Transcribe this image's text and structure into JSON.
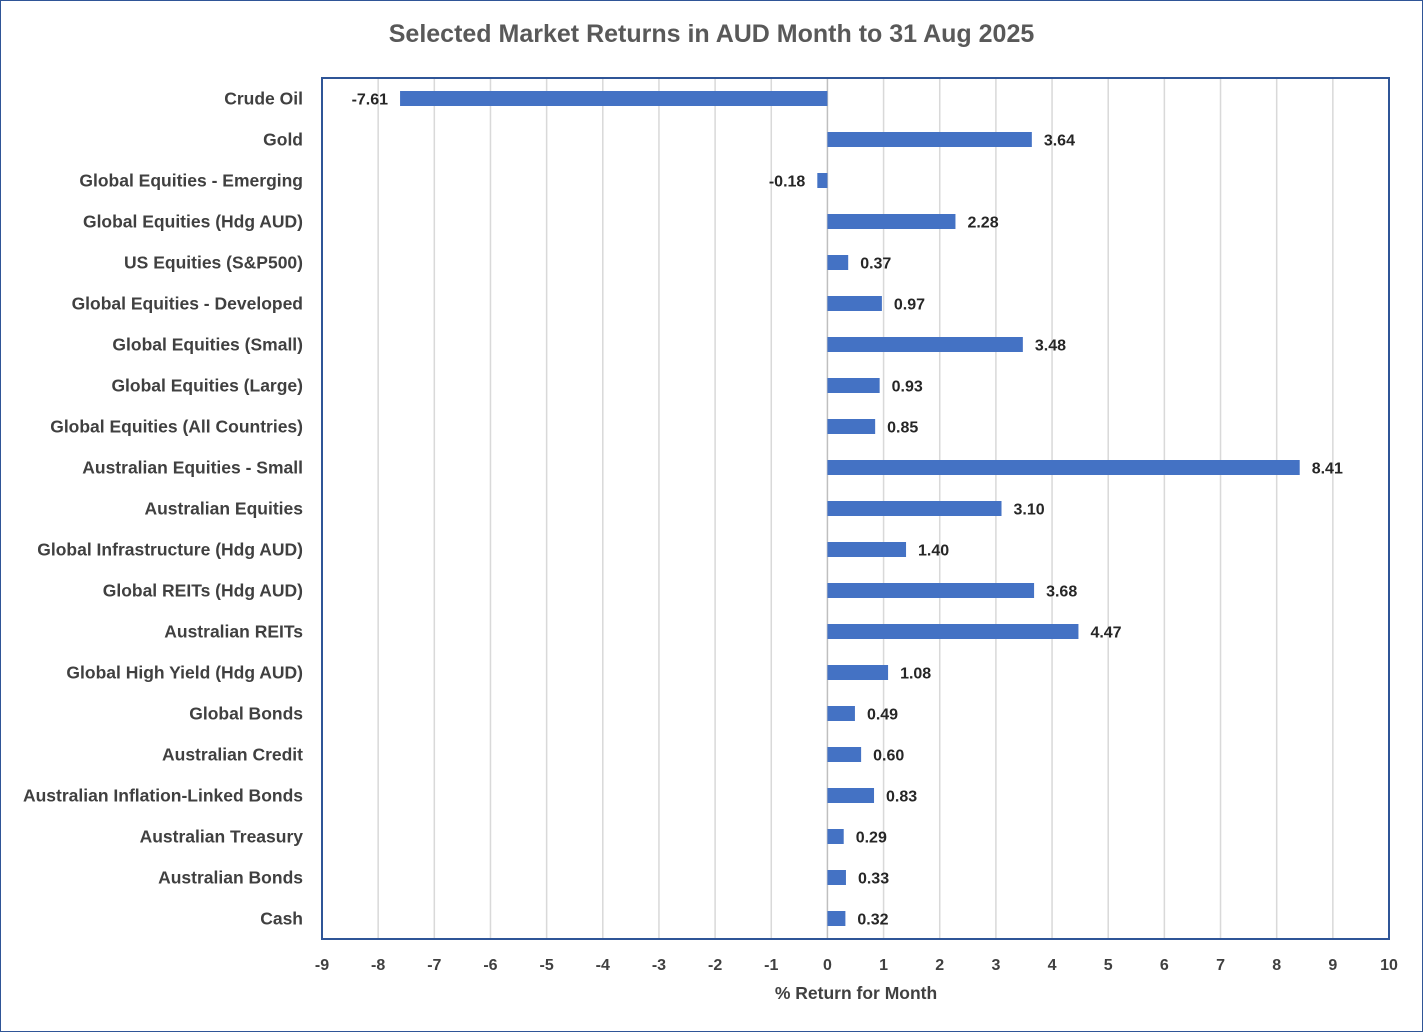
{
  "chart_data": {
    "type": "bar",
    "orientation": "horizontal",
    "title": "Selected Market Returns in AUD Month to 31 Aug 2025",
    "xlabel": "% Return for Month",
    "ylabel": "",
    "xlim": [
      -9,
      10
    ],
    "xticks": [
      "-9",
      "-8",
      "-7",
      "-6",
      "-5",
      "-4",
      "-3",
      "-2",
      "-1",
      "0",
      "1",
      "2",
      "3",
      "4",
      "5",
      "6",
      "7",
      "8",
      "9",
      "10"
    ],
    "grid": "vertical",
    "legend": "none",
    "bar_color": "#4472c4",
    "categories": [
      "Crude Oil",
      "Gold",
      "Global Equities - Emerging",
      "Global Equities (Hdg AUD)",
      "US Equities (S&P500)",
      "Global Equities - Developed",
      "Global Equities (Small)",
      "Global Equities (Large)",
      "Global Equities (All Countries)",
      "Australian Equities - Small",
      "Australian Equities",
      "Global Infrastructure (Hdg AUD)",
      "Global REITs (Hdg AUD)",
      "Australian REITs",
      "Global High Yield (Hdg AUD)",
      "Global Bonds",
      "Australian Credit",
      "Australian Inflation-Linked Bonds",
      "Australian Treasury",
      "Australian Bonds",
      "Cash"
    ],
    "values": [
      -7.61,
      3.64,
      -0.18,
      2.28,
      0.37,
      0.97,
      3.48,
      0.93,
      0.85,
      8.41,
      3.1,
      1.4,
      3.68,
      4.47,
      1.08,
      0.49,
      0.6,
      0.83,
      0.29,
      0.33,
      0.32
    ],
    "value_labels": [
      "-7.61",
      "3.64",
      "-0.18",
      "2.28",
      "0.37",
      "0.97",
      "3.48",
      "0.93",
      "0.85",
      "8.41",
      "3.10",
      "1.40",
      "3.68",
      "4.47",
      "1.08",
      "0.49",
      "0.60",
      "0.83",
      "0.29",
      "0.33",
      "0.32"
    ]
  }
}
